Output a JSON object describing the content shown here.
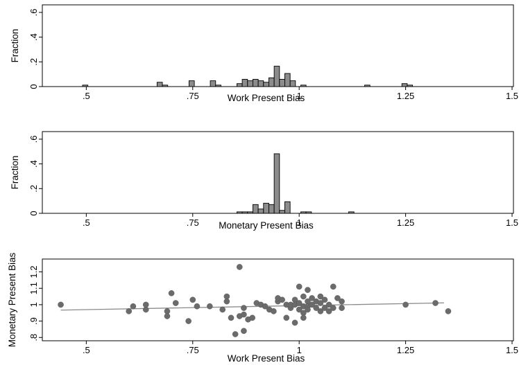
{
  "chart_data": [
    {
      "type": "bar",
      "panel": "work-histogram",
      "xlabel": "Work Present Bias",
      "ylabel": "Fraction",
      "xlim": [
        0.4,
        1.5
      ],
      "ylim": [
        0,
        0.65
      ],
      "x_ticks": [
        0.5,
        0.75,
        1,
        1.25,
        1.5
      ],
      "x_tick_labels": [
        ".5",
        ".75",
        "1",
        "1.25",
        "1.5"
      ],
      "y_ticks": [
        0,
        0.2,
        0.4,
        0.6
      ],
      "y_tick_labels": [
        "0",
        ".2",
        ".4",
        ".6"
      ],
      "bin_width": 0.0125,
      "bins": [
        {
          "x": 0.4475,
          "value": 0.012
        },
        {
          "x": 0.6225,
          "value": 0.035
        },
        {
          "x": 0.635,
          "value": 0.012
        },
        {
          "x": 0.6975,
          "value": 0.047
        },
        {
          "x": 0.7475,
          "value": 0.047
        },
        {
          "x": 0.76,
          "value": 0.012
        },
        {
          "x": 0.81,
          "value": 0.024
        },
        {
          "x": 0.8225,
          "value": 0.059
        },
        {
          "x": 0.835,
          "value": 0.047
        },
        {
          "x": 0.8475,
          "value": 0.059
        },
        {
          "x": 0.86,
          "value": 0.047
        },
        {
          "x": 0.8725,
          "value": 0.035
        },
        {
          "x": 0.885,
          "value": 0.071
        },
        {
          "x": 0.8975,
          "value": 0.165
        },
        {
          "x": 0.91,
          "value": 0.059
        },
        {
          "x": 0.9225,
          "value": 0.106
        },
        {
          "x": 0.935,
          "value": 0.047
        },
        {
          "x": 0.96,
          "value": 0.012
        },
        {
          "x": 1.11,
          "value": 0.012
        },
        {
          "x": 1.1975,
          "value": 0.024
        },
        {
          "x": 1.21,
          "value": 0.012
        }
      ]
    },
    {
      "type": "bar",
      "panel": "monetary-histogram",
      "xlabel": "Monetary Present Bias",
      "ylabel": "Fraction",
      "xlim": [
        0.4,
        1.5
      ],
      "ylim": [
        0,
        0.65
      ],
      "x_ticks": [
        0.5,
        0.75,
        1,
        1.25,
        1.5
      ],
      "x_tick_labels": [
        ".5",
        ".75",
        "1",
        "1.25",
        "1.5"
      ],
      "y_ticks": [
        0,
        0.2,
        0.4,
        0.6
      ],
      "y_tick_labels": [
        "0",
        ".2",
        ".4",
        ".6"
      ],
      "bin_width": 0.0125,
      "bins": [
        {
          "x": 0.81,
          "value": 0.012
        },
        {
          "x": 0.8225,
          "value": 0.012
        },
        {
          "x": 0.835,
          "value": 0.012
        },
        {
          "x": 0.8475,
          "value": 0.071
        },
        {
          "x": 0.86,
          "value": 0.035
        },
        {
          "x": 0.8725,
          "value": 0.082
        },
        {
          "x": 0.885,
          "value": 0.071
        },
        {
          "x": 0.8975,
          "value": 0.482
        },
        {
          "x": 0.91,
          "value": 0.024
        },
        {
          "x": 0.9225,
          "value": 0.094
        },
        {
          "x": 0.96,
          "value": 0.012
        },
        {
          "x": 0.9725,
          "value": 0.012
        },
        {
          "x": 1.0725,
          "value": 0.012
        }
      ]
    },
    {
      "type": "scatter",
      "panel": "scatter",
      "xlabel": "Work Present Bias",
      "ylabel": "Monetary Present Bias",
      "xlim": [
        0.4,
        1.5
      ],
      "ylim": [
        0.78,
        1.27
      ],
      "x_ticks": [
        0.5,
        0.75,
        1,
        1.25,
        1.5
      ],
      "x_tick_labels": [
        ".5",
        ".75",
        "1",
        "1.25",
        "1.5"
      ],
      "y_ticks": [
        0.8,
        0.9,
        1,
        1.1,
        1.2
      ],
      "y_tick_labels": [
        ".8",
        ".9",
        "1",
        "1.1",
        "1.2"
      ],
      "fit_line": {
        "x": [
          0.44,
          1.34
        ],
        "y": [
          0.967,
          1.011
        ]
      },
      "points": [
        {
          "x": 0.44,
          "y": 1.0
        },
        {
          "x": 0.6,
          "y": 0.96
        },
        {
          "x": 0.61,
          "y": 0.99
        },
        {
          "x": 0.64,
          "y": 0.97
        },
        {
          "x": 0.64,
          "y": 1.0
        },
        {
          "x": 0.69,
          "y": 0.96
        },
        {
          "x": 0.69,
          "y": 0.93
        },
        {
          "x": 0.7,
          "y": 1.07
        },
        {
          "x": 0.71,
          "y": 1.01
        },
        {
          "x": 0.74,
          "y": 0.9
        },
        {
          "x": 0.75,
          "y": 1.03
        },
        {
          "x": 0.76,
          "y": 0.99
        },
        {
          "x": 0.79,
          "y": 0.99
        },
        {
          "x": 0.82,
          "y": 0.97
        },
        {
          "x": 0.83,
          "y": 1.05
        },
        {
          "x": 0.83,
          "y": 1.02
        },
        {
          "x": 0.84,
          "y": 0.92
        },
        {
          "x": 0.85,
          "y": 0.82
        },
        {
          "x": 0.86,
          "y": 1.23
        },
        {
          "x": 0.86,
          "y": 0.93
        },
        {
          "x": 0.87,
          "y": 0.94
        },
        {
          "x": 0.87,
          "y": 0.84
        },
        {
          "x": 0.87,
          "y": 0.98
        },
        {
          "x": 0.88,
          "y": 0.91
        },
        {
          "x": 0.89,
          "y": 0.92
        },
        {
          "x": 0.9,
          "y": 1.01
        },
        {
          "x": 0.91,
          "y": 1.0
        },
        {
          "x": 0.92,
          "y": 0.99
        },
        {
          "x": 0.93,
          "y": 0.97
        },
        {
          "x": 0.94,
          "y": 0.96
        },
        {
          "x": 0.95,
          "y": 1.02
        },
        {
          "x": 0.95,
          "y": 1.04
        },
        {
          "x": 0.96,
          "y": 1.03
        },
        {
          "x": 0.97,
          "y": 1.0
        },
        {
          "x": 0.97,
          "y": 0.92
        },
        {
          "x": 0.98,
          "y": 0.98
        },
        {
          "x": 0.98,
          "y": 1.0
        },
        {
          "x": 0.99,
          "y": 1.03
        },
        {
          "x": 0.99,
          "y": 0.89
        },
        {
          "x": 0.99,
          "y": 1.0
        },
        {
          "x": 1.0,
          "y": 0.97
        },
        {
          "x": 1.0,
          "y": 1.01
        },
        {
          "x": 1.0,
          "y": 1.11
        },
        {
          "x": 1.01,
          "y": 0.95
        },
        {
          "x": 1.01,
          "y": 0.99
        },
        {
          "x": 1.01,
          "y": 0.92
        },
        {
          "x": 1.01,
          "y": 1.05
        },
        {
          "x": 1.02,
          "y": 1.02
        },
        {
          "x": 1.02,
          "y": 0.99
        },
        {
          "x": 1.02,
          "y": 0.97
        },
        {
          "x": 1.02,
          "y": 1.09
        },
        {
          "x": 1.03,
          "y": 1.0
        },
        {
          "x": 1.03,
          "y": 1.04
        },
        {
          "x": 1.04,
          "y": 0.98
        },
        {
          "x": 1.04,
          "y": 1.02
        },
        {
          "x": 1.05,
          "y": 0.96
        },
        {
          "x": 1.05,
          "y": 1.05
        },
        {
          "x": 1.05,
          "y": 1.01
        },
        {
          "x": 1.06,
          "y": 0.98
        },
        {
          "x": 1.06,
          "y": 1.03
        },
        {
          "x": 1.07,
          "y": 0.96
        },
        {
          "x": 1.07,
          "y": 1.0
        },
        {
          "x": 1.08,
          "y": 0.98
        },
        {
          "x": 1.08,
          "y": 1.11
        },
        {
          "x": 1.09,
          "y": 1.04
        },
        {
          "x": 1.1,
          "y": 0.98
        },
        {
          "x": 1.1,
          "y": 1.02
        },
        {
          "x": 1.25,
          "y": 1.0
        },
        {
          "x": 1.32,
          "y": 1.01
        },
        {
          "x": 1.35,
          "y": 0.96
        }
      ]
    }
  ]
}
